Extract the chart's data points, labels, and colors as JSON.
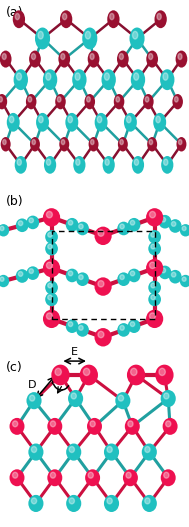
{
  "fig_width": 1.89,
  "fig_height": 5.27,
  "dpi": 100,
  "bg_color": "#ffffff",
  "panel_labels": [
    "(a)",
    "(b)",
    "(c)"
  ],
  "panel_label_fontsize": 9,
  "color_teal": "#20C0C0",
  "color_red": "#EE1050",
  "color_dark_red": "#991030",
  "bond_color_teal": "#20A0A0",
  "bond_color_red": "#CC1040",
  "bond_color_darkred": "#881030"
}
